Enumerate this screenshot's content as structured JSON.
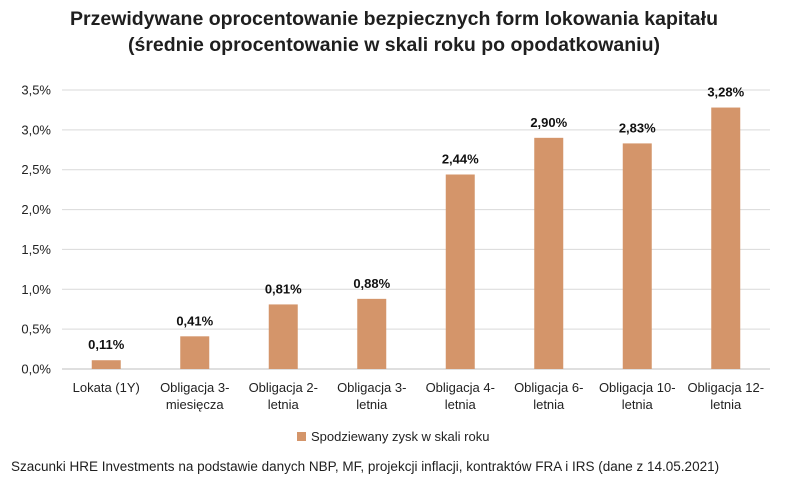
{
  "chart_data": {
    "type": "bar",
    "title": [
      "Przewidywane oprocentowanie bezpiecznych form lokowania kapitału",
      "(średnie oprocentowanie w skali roku po opodatkowaniu)"
    ],
    "categories": [
      [
        "Lokata (1Y)"
      ],
      [
        "Obligacja 3-",
        "miesięcza"
      ],
      [
        "Obligacja 2-",
        "letnia"
      ],
      [
        "Obligacja 3-",
        "letnia"
      ],
      [
        "Obligacja 4-",
        "letnia"
      ],
      [
        "Obligacja 6-",
        "letnia"
      ],
      [
        "Obligacja 10-",
        "letnia"
      ],
      [
        "Obligacja 12-",
        "letnia"
      ]
    ],
    "series": [
      {
        "name": "Spodziewany zysk w skali roku",
        "values": [
          0.11,
          0.41,
          0.81,
          0.88,
          2.44,
          2.9,
          2.83,
          3.28
        ],
        "labels": [
          "0,11%",
          "0,41%",
          "0,81%",
          "0,88%",
          "2,44%",
          "2,90%",
          "2,83%",
          "3,28%"
        ]
      }
    ],
    "ylim": [
      0,
      3.5
    ],
    "yticks": [
      0,
      0.5,
      1.0,
      1.5,
      2.0,
      2.5,
      3.0,
      3.5
    ],
    "ytick_labels": [
      "0,0%",
      "0,5%",
      "1,0%",
      "1,5%",
      "2,0%",
      "2,5%",
      "3,0%",
      "3,5%"
    ],
    "grid": true,
    "legend": "bottom",
    "xlabel": "",
    "ylabel": ""
  },
  "colors": {
    "bar": "#d4956a",
    "grid": "#d9d9d9",
    "axis": "#bfbfbf"
  },
  "footnote": "Szacunki HRE Investments na podstawie danych NBP, MF, projekcji inflacji, kontraktów FRA i IRS (dane z 14.05.2021)"
}
